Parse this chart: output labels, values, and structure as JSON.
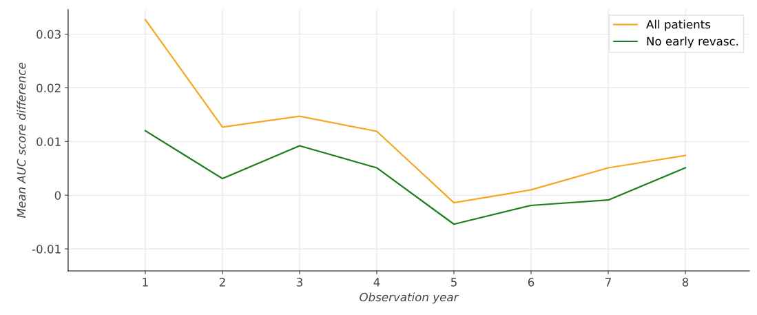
{
  "chart_data": {
    "type": "line",
    "xlabel": "Observation year",
    "ylabel": "Mean AUC score difference",
    "x": [
      1,
      2,
      3,
      4,
      5,
      6,
      7,
      8
    ],
    "series": [
      {
        "name": "All patients",
        "color": "#f5a623",
        "values": [
          0.0327,
          0.0127,
          0.0147,
          0.0119,
          -0.0014,
          0.001,
          0.0051,
          0.0074
        ]
      },
      {
        "name": "No early revasc.",
        "color": "#1e7d1e",
        "values": [
          0.012,
          0.0031,
          0.0092,
          0.0051,
          -0.0054,
          -0.0019,
          -0.0009,
          0.0051
        ]
      }
    ],
    "xlim": [
      0,
      8.83
    ],
    "xticks": [
      1,
      2,
      3,
      4,
      5,
      6,
      7,
      8
    ],
    "ylim": [
      -0.0141,
      0.0346
    ],
    "yticks": [
      {
        "value": -0.01,
        "label": "-0.01"
      },
      0,
      0.01,
      0.02,
      0.03
    ],
    "grid": true,
    "legend": "top right",
    "line_style": "solid",
    "marker": "none"
  }
}
